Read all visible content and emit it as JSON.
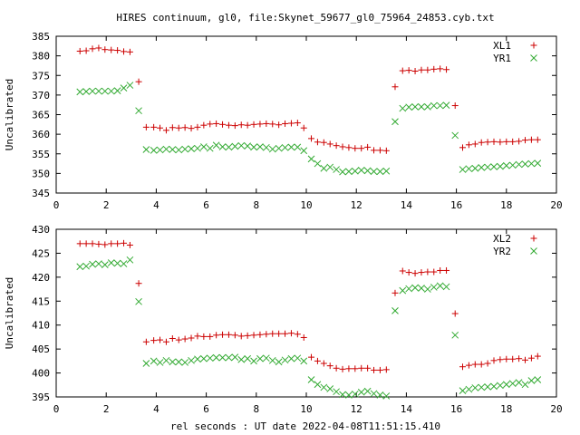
{
  "title": "HIRES continuum, gl0, file:Skynet_59677_gl0_75964_24853.cyb.txt",
  "xlabel": "rel seconds : UT date 2022-04-08T11:51:15.410",
  "colors": {
    "red": "#cc0000",
    "green": "#33aa33"
  },
  "chart_data": [
    {
      "type": "scatter",
      "ylabel": "Uncalibrated",
      "xlim": [
        0,
        20
      ],
      "ylim": [
        345,
        385
      ],
      "xticks": [
        0,
        2,
        4,
        6,
        8,
        10,
        12,
        14,
        16,
        18,
        20
      ],
      "yticks": [
        345,
        350,
        355,
        360,
        365,
        370,
        375,
        380,
        385
      ],
      "legend": "top-right",
      "grid": false,
      "series": [
        {
          "name": "XL1",
          "marker": "plus",
          "color": "#cc0000",
          "x": [
            0.95,
            1.2,
            1.45,
            1.7,
            1.95,
            2.2,
            2.45,
            2.7,
            2.95,
            3.3,
            3.6,
            3.9,
            4.15,
            4.4,
            4.65,
            4.9,
            5.15,
            5.4,
            5.65,
            5.9,
            6.15,
            6.4,
            6.65,
            6.9,
            7.15,
            7.4,
            7.65,
            7.9,
            8.15,
            8.4,
            8.65,
            8.9,
            9.15,
            9.4,
            9.65,
            9.9,
            10.2,
            10.45,
            10.7,
            10.95,
            11.2,
            11.45,
            11.7,
            11.95,
            12.2,
            12.45,
            12.7,
            12.95,
            13.2,
            13.55,
            13.85,
            14.1,
            14.35,
            14.6,
            14.85,
            15.1,
            15.35,
            15.6,
            15.95,
            16.25,
            16.5,
            16.75,
            17.0,
            17.25,
            17.5,
            17.75,
            18.0,
            18.25,
            18.5,
            18.75,
            19.0,
            19.25
          ],
          "y": [
            381.2,
            381.3,
            381.8,
            382.0,
            381.6,
            381.5,
            381.4,
            381.1,
            381.0,
            373.4,
            361.8,
            361.8,
            361.6,
            361.0,
            361.7,
            361.6,
            361.7,
            361.5,
            361.8,
            362.3,
            362.6,
            362.7,
            362.5,
            362.3,
            362.2,
            362.4,
            362.3,
            362.5,
            362.6,
            362.7,
            362.6,
            362.4,
            362.7,
            362.8,
            362.9,
            361.6,
            358.9,
            358.0,
            357.9,
            357.5,
            357.1,
            356.8,
            356.6,
            356.4,
            356.4,
            356.7,
            355.9,
            355.9,
            355.8,
            372.1,
            376.2,
            376.3,
            376.1,
            376.4,
            376.4,
            376.6,
            376.7,
            376.5,
            367.3,
            356.6,
            357.3,
            357.5,
            357.9,
            358.0,
            358.1,
            358.0,
            358.1,
            358.1,
            358.2,
            358.5,
            358.6,
            358.6
          ]
        },
        {
          "name": "YR1",
          "marker": "cross",
          "color": "#33aa33",
          "x": [
            0.95,
            1.2,
            1.45,
            1.7,
            1.95,
            2.2,
            2.45,
            2.7,
            2.95,
            3.3,
            3.6,
            3.9,
            4.15,
            4.4,
            4.65,
            4.9,
            5.15,
            5.4,
            5.65,
            5.9,
            6.15,
            6.4,
            6.65,
            6.9,
            7.15,
            7.4,
            7.65,
            7.9,
            8.15,
            8.4,
            8.65,
            8.9,
            9.15,
            9.4,
            9.65,
            9.9,
            10.2,
            10.45,
            10.7,
            10.95,
            11.2,
            11.45,
            11.7,
            11.95,
            12.2,
            12.45,
            12.7,
            12.95,
            13.2,
            13.55,
            13.85,
            14.1,
            14.35,
            14.6,
            14.85,
            15.1,
            15.35,
            15.6,
            15.95,
            16.25,
            16.5,
            16.75,
            17.0,
            17.25,
            17.5,
            17.75,
            18.0,
            18.25,
            18.5,
            18.75,
            19.0,
            19.25
          ],
          "y": [
            370.8,
            370.9,
            371.0,
            371.0,
            371.0,
            371.0,
            371.1,
            371.8,
            372.5,
            366.0,
            356.1,
            355.9,
            356.0,
            356.2,
            356.1,
            356.0,
            356.2,
            356.3,
            356.4,
            356.8,
            356.4,
            357.2,
            356.8,
            356.7,
            356.9,
            357.1,
            357.0,
            356.7,
            356.8,
            356.6,
            356.2,
            356.4,
            356.6,
            356.7,
            356.7,
            355.8,
            353.7,
            352.5,
            351.3,
            351.6,
            351.0,
            350.4,
            350.5,
            350.6,
            350.8,
            350.7,
            350.5,
            350.5,
            350.6,
            363.2,
            366.6,
            366.9,
            367.0,
            367.0,
            367.0,
            367.3,
            367.3,
            367.4,
            359.7,
            351.0,
            351.2,
            351.3,
            351.5,
            351.6,
            351.7,
            351.8,
            352.0,
            352.1,
            352.3,
            352.4,
            352.5,
            352.6
          ]
        }
      ]
    },
    {
      "type": "scatter",
      "ylabel": "Uncalibrated",
      "xlabel": "rel seconds : UT date 2022-04-08T11:51:15.410",
      "xlim": [
        0,
        20
      ],
      "ylim": [
        395,
        430
      ],
      "xticks": [
        0,
        2,
        4,
        6,
        8,
        10,
        12,
        14,
        16,
        18,
        20
      ],
      "yticks": [
        395,
        400,
        405,
        410,
        415,
        420,
        425,
        430
      ],
      "legend": "top-right",
      "grid": false,
      "series": [
        {
          "name": "XL2",
          "marker": "plus",
          "color": "#cc0000",
          "x": [
            0.95,
            1.2,
            1.45,
            1.7,
            1.95,
            2.2,
            2.45,
            2.7,
            2.95,
            3.3,
            3.6,
            3.9,
            4.15,
            4.4,
            4.65,
            4.9,
            5.15,
            5.4,
            5.65,
            5.9,
            6.15,
            6.4,
            6.65,
            6.9,
            7.15,
            7.4,
            7.65,
            7.9,
            8.15,
            8.4,
            8.65,
            8.9,
            9.15,
            9.4,
            9.65,
            9.9,
            10.2,
            10.45,
            10.7,
            10.95,
            11.2,
            11.45,
            11.7,
            11.95,
            12.2,
            12.45,
            12.7,
            12.95,
            13.2,
            13.55,
            13.85,
            14.1,
            14.35,
            14.6,
            14.85,
            15.1,
            15.35,
            15.6,
            15.95,
            16.25,
            16.5,
            16.75,
            17.0,
            17.25,
            17.5,
            17.75,
            18.0,
            18.25,
            18.5,
            18.75,
            19.0,
            19.25
          ],
          "y": [
            427.0,
            427.0,
            427.0,
            426.9,
            426.8,
            427.0,
            427.0,
            427.1,
            426.7,
            418.7,
            406.5,
            406.8,
            406.9,
            406.5,
            407.2,
            406.9,
            407.1,
            407.3,
            407.7,
            407.6,
            407.6,
            407.9,
            408.0,
            408.0,
            407.9,
            407.7,
            407.8,
            407.9,
            408.0,
            408.1,
            408.2,
            408.2,
            408.2,
            408.3,
            408.1,
            407.4,
            403.3,
            402.5,
            402.0,
            401.5,
            401.0,
            400.8,
            400.9,
            400.9,
            401.0,
            401.0,
            400.6,
            400.6,
            400.7,
            416.7,
            421.3,
            421.0,
            420.8,
            421.0,
            421.1,
            421.1,
            421.4,
            421.4,
            412.4,
            401.3,
            401.6,
            401.8,
            401.8,
            402.0,
            402.6,
            402.8,
            402.9,
            402.9,
            403.0,
            402.7,
            403.1,
            403.5
          ]
        },
        {
          "name": "YR2",
          "marker": "cross",
          "color": "#33aa33",
          "x": [
            0.95,
            1.2,
            1.45,
            1.7,
            1.95,
            2.2,
            2.45,
            2.7,
            2.95,
            3.3,
            3.6,
            3.9,
            4.15,
            4.4,
            4.65,
            4.9,
            5.15,
            5.4,
            5.65,
            5.9,
            6.15,
            6.4,
            6.65,
            6.9,
            7.15,
            7.4,
            7.65,
            7.9,
            8.15,
            8.4,
            8.65,
            8.9,
            9.15,
            9.4,
            9.65,
            9.9,
            10.2,
            10.45,
            10.7,
            10.95,
            11.2,
            11.45,
            11.7,
            11.95,
            12.2,
            12.45,
            12.7,
            12.95,
            13.2,
            13.55,
            13.85,
            14.1,
            14.35,
            14.6,
            14.85,
            15.1,
            15.35,
            15.6,
            15.95,
            16.25,
            16.5,
            16.75,
            17.0,
            17.25,
            17.5,
            17.75,
            18.0,
            18.25,
            18.5,
            18.75,
            19.0,
            19.25
          ],
          "y": [
            422.2,
            422.3,
            422.7,
            422.8,
            422.6,
            423.0,
            422.9,
            422.8,
            423.6,
            414.9,
            402.0,
            402.5,
            402.2,
            402.6,
            402.3,
            402.3,
            402.2,
            402.6,
            402.9,
            403.0,
            403.1,
            403.2,
            403.2,
            403.2,
            403.3,
            402.8,
            403.0,
            402.5,
            403.0,
            403.1,
            402.6,
            402.3,
            402.7,
            403.0,
            403.1,
            402.5,
            398.6,
            397.6,
            397.0,
            396.7,
            396.1,
            395.5,
            395.4,
            395.6,
            396.0,
            396.2,
            395.7,
            395.4,
            395.2,
            413.0,
            417.2,
            417.6,
            417.8,
            417.7,
            417.5,
            417.9,
            418.2,
            418.0,
            407.9,
            396.3,
            396.6,
            396.9,
            397.0,
            397.1,
            397.2,
            397.4,
            397.6,
            397.8,
            398.0,
            397.6,
            398.4,
            398.6
          ]
        }
      ]
    }
  ]
}
